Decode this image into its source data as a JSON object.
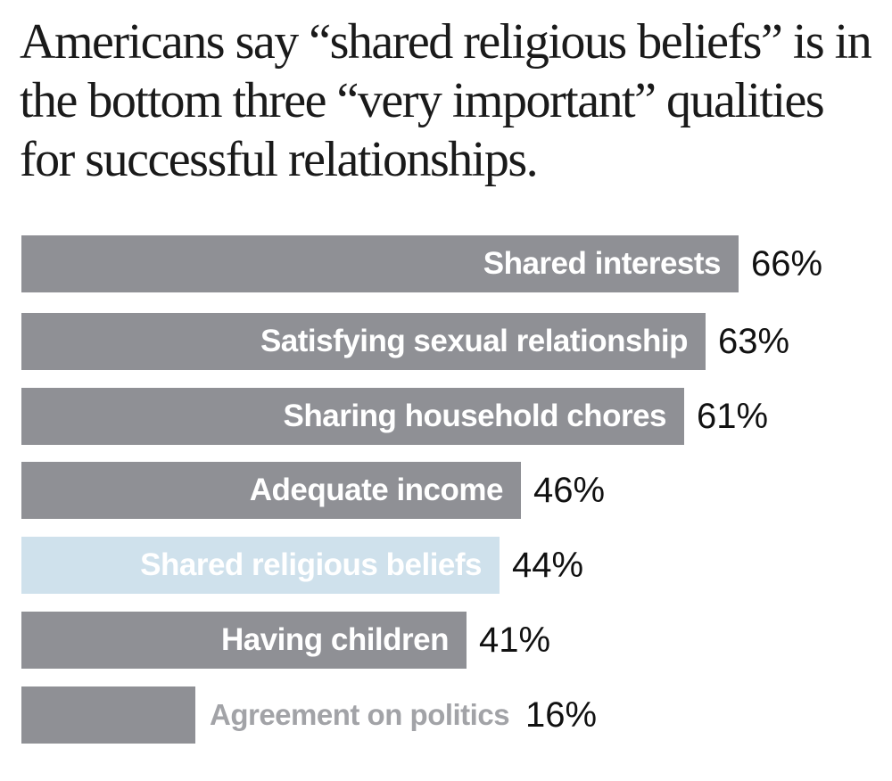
{
  "title": "Americans say “shared religious beliefs” is in the bottom three “very important” qualities for successful relationships.",
  "colors": {
    "bar": "#8f9095",
    "highlight": "#cfe1ec",
    "label_on_bar": "#ffffff",
    "label_outside": "#a2a3a7",
    "value_text": "#111111"
  },
  "chart_data": {
    "type": "bar",
    "orientation": "horizontal",
    "title": "Americans say “shared religious beliefs” is in the bottom three “very important” qualities for successful relationships.",
    "categories": [
      "Shared interests",
      "Satisfying sexual relationship",
      "Sharing household chores",
      "Adequate income",
      "Shared religious beliefs",
      "Having children",
      "Agreement on politics"
    ],
    "values": [
      66,
      63,
      61,
      46,
      44,
      41,
      16
    ],
    "value_labels": [
      "66%",
      "63%",
      "61%",
      "46%",
      "44%",
      "41%",
      "16%"
    ],
    "highlighted": "Shared religious beliefs",
    "xlim": [
      0,
      66
    ],
    "grid": false,
    "legend": "none"
  }
}
